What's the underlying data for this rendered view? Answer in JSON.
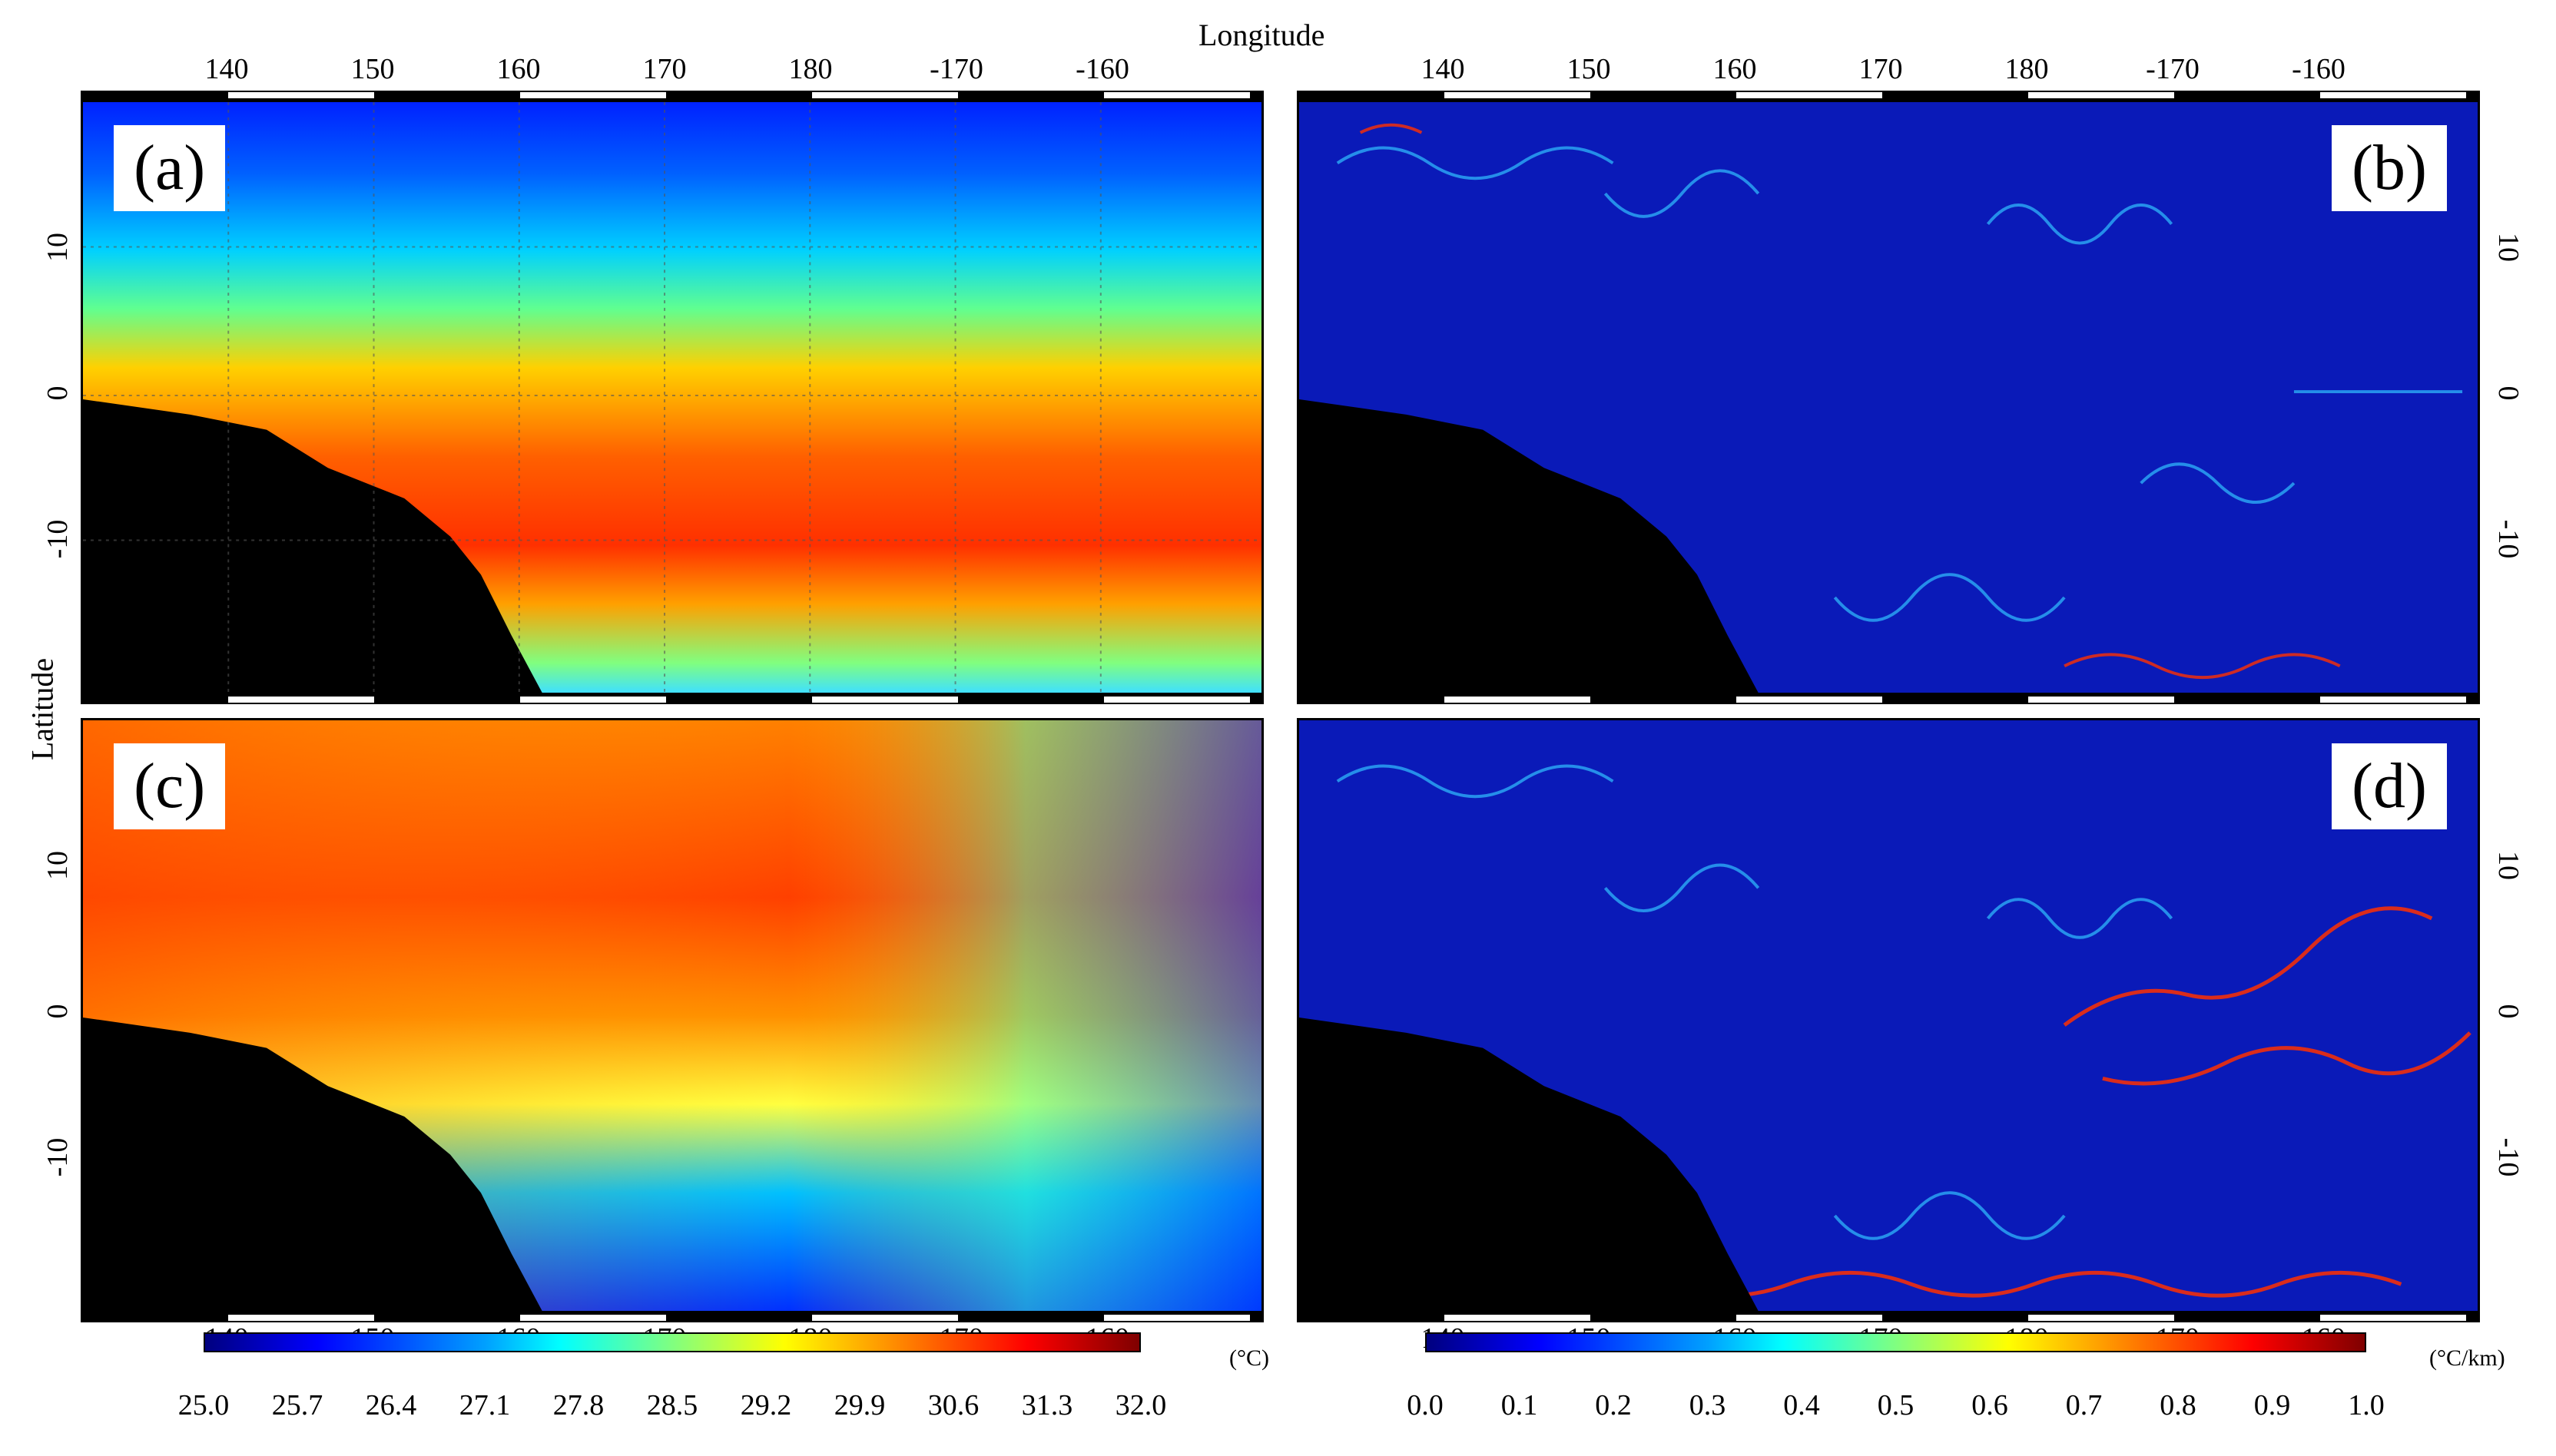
{
  "figure": {
    "xlabel": "Longitude",
    "ylabel": "Latitude",
    "lon_ticks": [
      "140",
      "150",
      "160",
      "170",
      "180",
      "-170",
      "-160"
    ],
    "lat_ticks": [
      "10",
      "0",
      "-10"
    ],
    "panels": [
      {
        "label": "(a)",
        "type": "sst"
      },
      {
        "label": "(b)",
        "type": "grad"
      },
      {
        "label": "(c)",
        "type": "sst"
      },
      {
        "label": "(d)",
        "type": "grad"
      }
    ],
    "colorbar_left": {
      "unit": "(°C)",
      "ticks": [
        "25.0",
        "25.7",
        "26.4",
        "27.1",
        "27.8",
        "28.5",
        "29.2",
        "29.9",
        "30.6",
        "31.3",
        "32.0"
      ]
    },
    "colorbar_right": {
      "unit": "(°C/km)",
      "ticks": [
        "0.0",
        "0.1",
        "0.2",
        "0.3",
        "0.4",
        "0.5",
        "0.6",
        "0.7",
        "0.8",
        "0.9",
        "1.0"
      ]
    },
    "colors": {
      "jet_dark_blue": "#00007f",
      "jet_blue": "#0000ff",
      "jet_cyan": "#00ffff",
      "jet_yellow": "#ffff00",
      "jet_red": "#ff0000",
      "jet_dark_red": "#7f0000",
      "land": "#000000"
    }
  }
}
